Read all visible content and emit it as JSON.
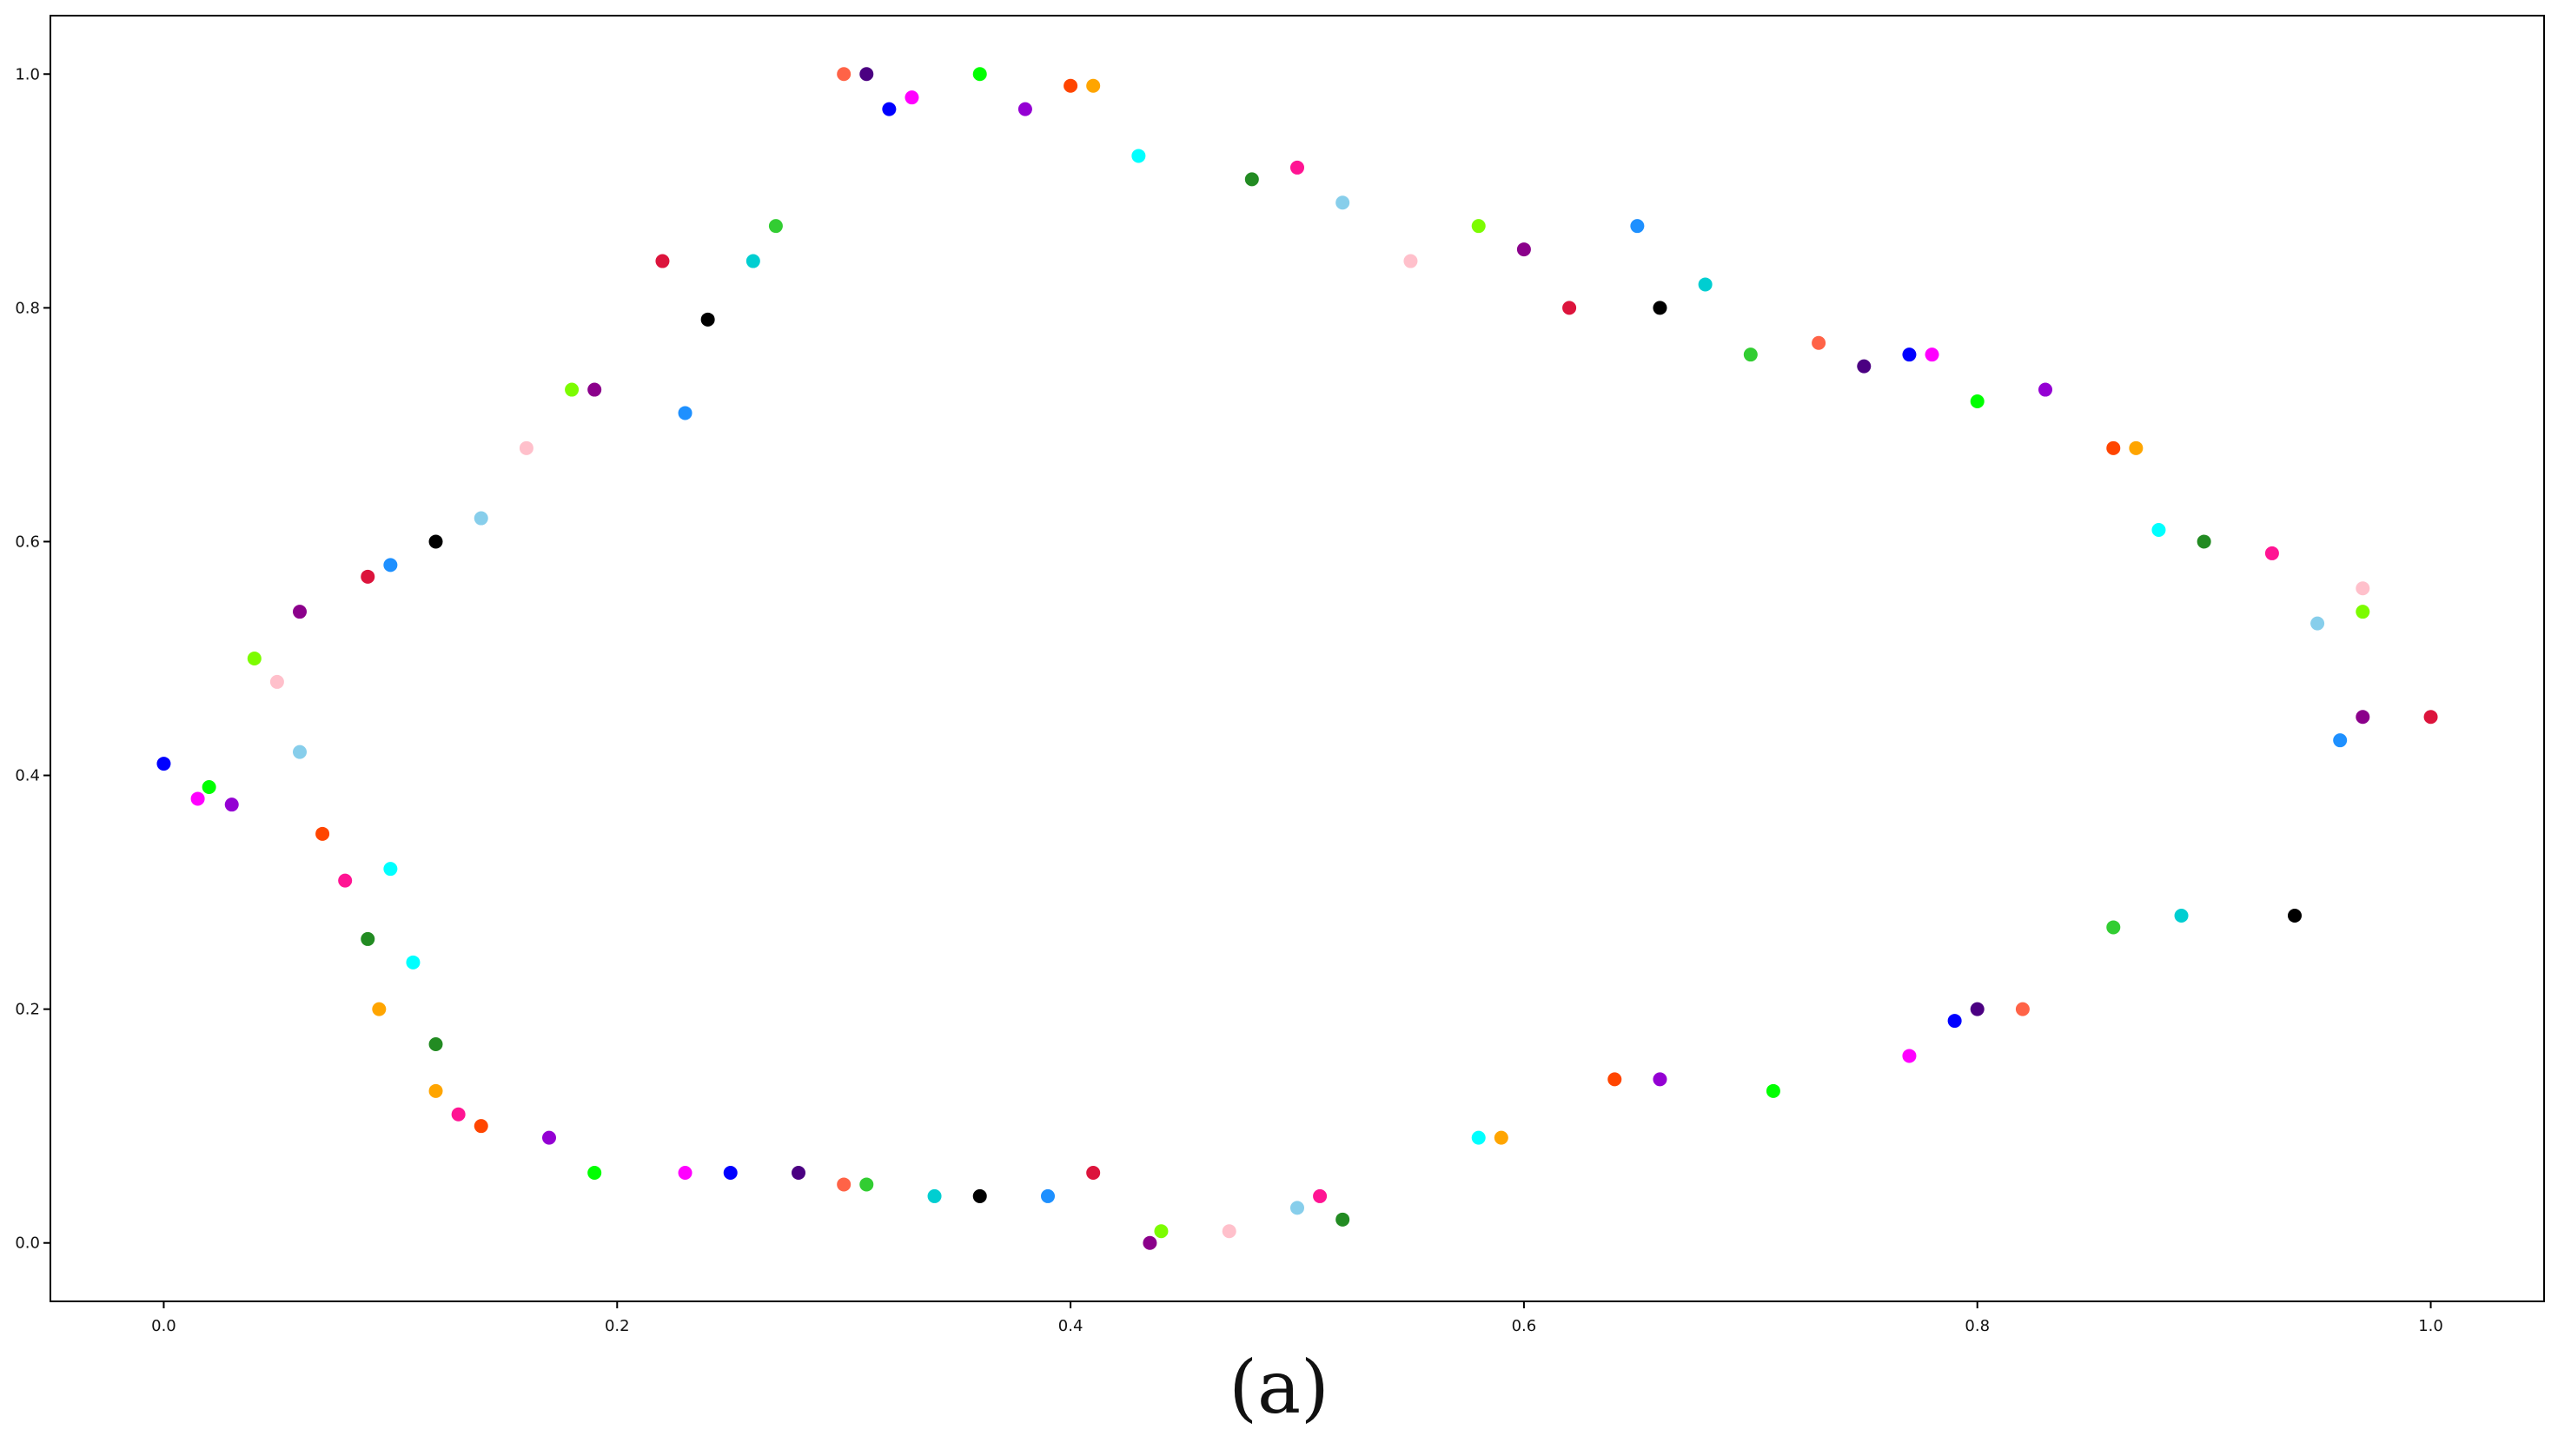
{
  "caption": "(a)",
  "chart_data": {
    "type": "scatter",
    "title": "",
    "xlabel": "",
    "ylabel": "",
    "xlim": [
      -0.05,
      1.05
    ],
    "ylim": [
      -0.05,
      1.05
    ],
    "x_ticks": [
      0.0,
      0.2,
      0.4,
      0.6,
      0.8,
      1.0
    ],
    "y_ticks": [
      0.0,
      0.2,
      0.4,
      0.6,
      0.8,
      1.0
    ],
    "x_tick_labels": [
      "0.0",
      "0.2",
      "0.4",
      "0.6",
      "0.8",
      "1.0"
    ],
    "y_tick_labels": [
      "0.0",
      "0.2",
      "0.4",
      "0.6",
      "0.8",
      "1.0"
    ],
    "grid": false,
    "legend": "none",
    "marker_colors": [
      "#0000ff",
      "#ff00ff",
      "#00ff00",
      "#9400d3",
      "#ff4500",
      "#ffa500",
      "#00ffff",
      "#228b22",
      "#ff1493",
      "#87ceeb",
      "#ffc0cb",
      "#7cfc00",
      "#8b008b",
      "#dc143c",
      "#1e90ff",
      "#000000",
      "#00ced1",
      "#32cd32",
      "#ff6347",
      "#4b0082"
    ],
    "series": [
      {
        "points": [
          [
            0.0,
            0.41
          ],
          [
            0.015,
            0.38
          ],
          [
            0.02,
            0.39
          ],
          [
            0.03,
            0.375
          ],
          [
            0.07,
            0.35
          ],
          [
            0.095,
            0.2
          ],
          [
            0.1,
            0.32
          ],
          [
            0.12,
            0.17
          ],
          [
            0.13,
            0.11
          ],
          [
            0.14,
            0.62
          ],
          [
            0.16,
            0.68
          ],
          [
            0.18,
            0.73
          ],
          [
            0.19,
            0.73
          ],
          [
            0.22,
            0.84
          ],
          [
            0.23,
            0.71
          ],
          [
            0.24,
            0.79
          ],
          [
            0.26,
            0.84
          ],
          [
            0.27,
            0.87
          ],
          [
            0.3,
            1.0
          ],
          [
            0.31,
            1.0
          ],
          [
            0.32,
            0.97
          ],
          [
            0.33,
            0.98
          ],
          [
            0.36,
            1.0
          ],
          [
            0.38,
            0.97
          ],
          [
            0.4,
            0.99
          ],
          [
            0.41,
            0.99
          ],
          [
            0.43,
            0.93
          ],
          [
            0.48,
            0.91
          ],
          [
            0.5,
            0.92
          ],
          [
            0.52,
            0.89
          ],
          [
            0.55,
            0.84
          ],
          [
            0.58,
            0.87
          ],
          [
            0.6,
            0.85
          ],
          [
            0.62,
            0.8
          ],
          [
            0.65,
            0.87
          ],
          [
            0.66,
            0.8
          ],
          [
            0.68,
            0.82
          ],
          [
            0.7,
            0.76
          ],
          [
            0.73,
            0.77
          ],
          [
            0.75,
            0.75
          ],
          [
            0.77,
            0.76
          ],
          [
            0.78,
            0.76
          ],
          [
            0.8,
            0.72
          ],
          [
            0.83,
            0.73
          ],
          [
            0.86,
            0.68
          ],
          [
            0.87,
            0.68
          ],
          [
            0.88,
            0.61
          ],
          [
            0.9,
            0.6
          ],
          [
            0.93,
            0.59
          ],
          [
            0.95,
            0.53
          ],
          [
            0.97,
            0.56
          ],
          [
            0.97,
            0.54
          ],
          [
            0.97,
            0.45
          ],
          [
            1.0,
            0.45
          ],
          [
            0.96,
            0.43
          ],
          [
            0.94,
            0.28
          ],
          [
            0.89,
            0.28
          ],
          [
            0.86,
            0.27
          ],
          [
            0.82,
            0.2
          ],
          [
            0.8,
            0.2
          ],
          [
            0.79,
            0.19
          ],
          [
            0.77,
            0.16
          ],
          [
            0.71,
            0.13
          ],
          [
            0.66,
            0.14
          ],
          [
            0.64,
            0.14
          ],
          [
            0.59,
            0.09
          ],
          [
            0.58,
            0.09
          ],
          [
            0.52,
            0.02
          ],
          [
            0.51,
            0.04
          ],
          [
            0.5,
            0.03
          ],
          [
            0.47,
            0.01
          ],
          [
            0.44,
            0.01
          ],
          [
            0.435,
            0.0
          ],
          [
            0.41,
            0.06
          ],
          [
            0.39,
            0.04
          ],
          [
            0.36,
            0.04
          ],
          [
            0.34,
            0.04
          ],
          [
            0.31,
            0.05
          ],
          [
            0.3,
            0.05
          ],
          [
            0.28,
            0.06
          ],
          [
            0.25,
            0.06
          ],
          [
            0.23,
            0.06
          ],
          [
            0.19,
            0.06
          ],
          [
            0.17,
            0.09
          ],
          [
            0.14,
            0.1
          ],
          [
            0.12,
            0.13
          ],
          [
            0.11,
            0.24
          ],
          [
            0.09,
            0.26
          ],
          [
            0.08,
            0.31
          ],
          [
            0.06,
            0.42
          ],
          [
            0.05,
            0.48
          ],
          [
            0.04,
            0.5
          ],
          [
            0.06,
            0.54
          ],
          [
            0.09,
            0.57
          ],
          [
            0.1,
            0.58
          ],
          [
            0.12,
            0.6
          ]
        ]
      }
    ]
  }
}
